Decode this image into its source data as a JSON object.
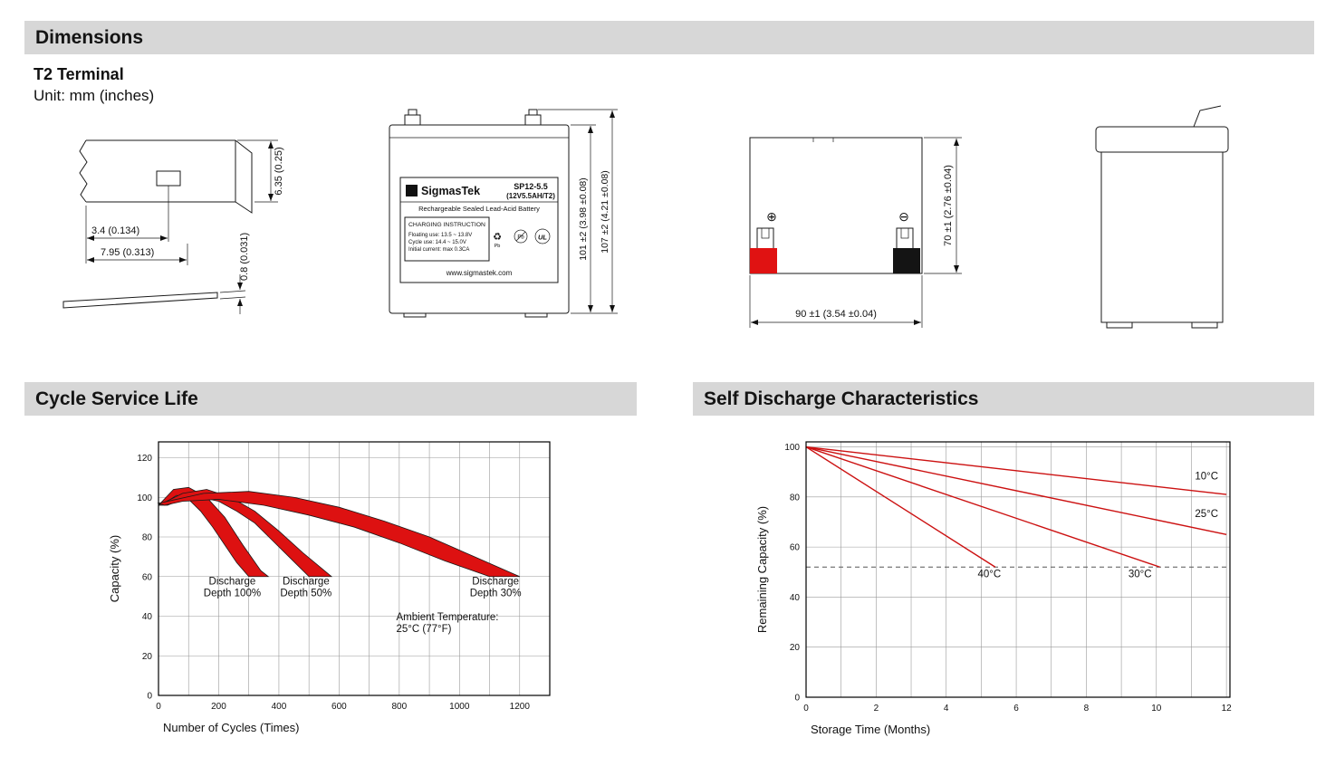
{
  "page": {
    "header_bg": "#d7d7d7",
    "accent_red": "#dd1111"
  },
  "headers": {
    "dimensions": "Dimensions",
    "cycle_service_life": "Cycle Service Life",
    "self_discharge": "Self Discharge Characteristics"
  },
  "dimensions_section": {
    "terminal_type": "T2 Terminal",
    "unit_note": "Unit: mm (inches)",
    "terminal_drawing": {
      "thickness": "6.35 (0.25)",
      "hole_offset": "3.4 (0.134)",
      "tab_width": "7.95 (0.313)",
      "plate_thickness": "0.8 (0.031)"
    },
    "front_view": {
      "logo_glyph": "Σ",
      "brand": "SigmasTek",
      "model": "SP12-5.5",
      "spec": "(12V5.5AH/T2)",
      "battery_type": "Rechargeable Sealed Lead-Acid Battery",
      "charging_title": "CHARGING INSTRUCTION",
      "charging_line1": "Floating use: 13.5 ~ 13.8V",
      "charging_line2": "Cycle use: 14.4 ~ 15.0V",
      "charging_line3": "Initial current: max 0.3CA",
      "website": "www.sigmastek.com",
      "recycle_symbol": "♻",
      "pb": "Pb",
      "ul": "UL",
      "height_case": "101 ±2 (3.98 ±0.08)",
      "height_total": "107 ±2 (4.21 ±0.08)"
    },
    "top_view": {
      "positive": "⊕",
      "negative": "⊖",
      "length": "90 ±1 (3.54 ±0.04)",
      "depth": "70 ±1 (2.76 ±0.04)"
    }
  },
  "chart_data": [
    {
      "id": "cycle_service_life",
      "type": "area",
      "title": "Cycle Service Life",
      "xlabel": "Number of Cycles (Times)",
      "ylabel": "Capacity (%)",
      "xlim": [
        0,
        1300
      ],
      "ylim": [
        0,
        128
      ],
      "xticks": [
        0,
        200,
        400,
        600,
        800,
        1000,
        1200
      ],
      "xgrid_step": 100,
      "yticks": [
        0,
        20,
        40,
        60,
        80,
        100,
        120
      ],
      "band_color": "#dd1111",
      "bands": [
        {
          "name": "Discharge Depth 100%",
          "points": [
            [
              0,
              96
            ],
            [
              50,
              104
            ],
            [
              100,
              105
            ],
            [
              160,
              100
            ],
            [
              220,
              90
            ],
            [
              280,
              76
            ],
            [
              340,
              63
            ],
            [
              365,
              60
            ],
            [
              300,
              60
            ],
            [
              260,
              67
            ],
            [
              220,
              76
            ],
            [
              180,
              85
            ],
            [
              140,
              93
            ],
            [
              100,
              99
            ],
            [
              60,
              101
            ],
            [
              20,
              97
            ]
          ]
        },
        {
          "name": "Discharge Depth 50%",
          "points": [
            [
              0,
              96
            ],
            [
              80,
              102
            ],
            [
              160,
              104
            ],
            [
              240,
              100
            ],
            [
              320,
              93
            ],
            [
              400,
              83
            ],
            [
              480,
              72
            ],
            [
              575,
              60
            ],
            [
              500,
              60
            ],
            [
              440,
              69
            ],
            [
              380,
              78
            ],
            [
              320,
              87
            ],
            [
              260,
              93
            ],
            [
              200,
              98
            ],
            [
              140,
              100
            ],
            [
              80,
              99
            ],
            [
              30,
              96
            ]
          ]
        },
        {
          "name": "Discharge Depth 30%",
          "points": [
            [
              0,
              97
            ],
            [
              150,
              102
            ],
            [
              300,
              103
            ],
            [
              450,
              100
            ],
            [
              600,
              95
            ],
            [
              750,
              88
            ],
            [
              900,
              80
            ],
            [
              1050,
              70
            ],
            [
              1200,
              60
            ],
            [
              1100,
              60
            ],
            [
              950,
              68
            ],
            [
              800,
              77
            ],
            [
              650,
              85
            ],
            [
              500,
              91
            ],
            [
              350,
              96
            ],
            [
              200,
              99
            ],
            [
              80,
              98
            ],
            [
              20,
              96
            ]
          ]
        }
      ],
      "annotations": [
        {
          "text": [
            "Discharge",
            "Depth 100%"
          ],
          "x": 245,
          "y": 56
        },
        {
          "text": [
            "Discharge",
            "Depth 50%"
          ],
          "x": 490,
          "y": 56
        },
        {
          "text": [
            "Discharge",
            "Depth 30%"
          ],
          "x": 1120,
          "y": 56
        },
        {
          "text": [
            "Ambient Temperature:",
            "25°C (77°F)"
          ],
          "x": 790,
          "y": 38,
          "align": "start"
        }
      ],
      "ambient_note": "Ambient Temperature: 25°C (77°F)"
    },
    {
      "id": "self_discharge",
      "type": "line",
      "title": "Self Discharge Characteristics",
      "xlabel": "Storage Time (Months)",
      "ylabel": "Remaining Capacity (%)",
      "xlim": [
        0,
        12.1
      ],
      "ylim": [
        0,
        102
      ],
      "xticks": [
        0,
        2,
        4,
        6,
        8,
        10,
        12
      ],
      "xgrid_step": 1,
      "yticks": [
        0,
        20,
        40,
        60,
        80,
        100
      ],
      "line_color": "#cc1111",
      "series": [
        {
          "name": "10°C",
          "points": [
            [
              0,
              100
            ],
            [
              12,
              81
            ]
          ],
          "label_x": 11.1,
          "label_y": 87
        },
        {
          "name": "25°C",
          "points": [
            [
              0,
              100
            ],
            [
              12,
              65
            ]
          ],
          "label_x": 11.1,
          "label_y": 72
        },
        {
          "name": "30°C",
          "points": [
            [
              0,
              100
            ],
            [
              10.1,
              52
            ]
          ],
          "label_x": 9.2,
          "label_y": 48
        },
        {
          "name": "40°C",
          "points": [
            [
              0,
              100
            ],
            [
              5.4,
              52
            ]
          ],
          "label_x": 4.9,
          "label_y": 48
        }
      ],
      "dashed_line_y": 52
    }
  ]
}
